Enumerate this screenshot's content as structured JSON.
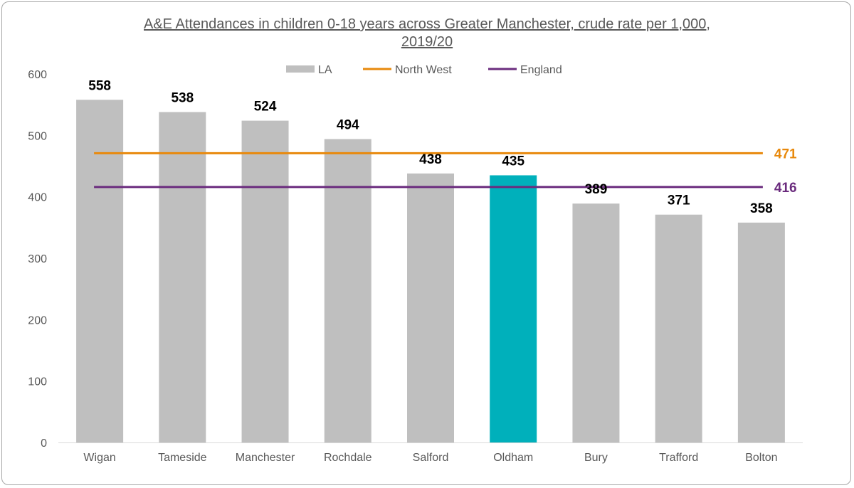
{
  "chart_data": {
    "type": "bar",
    "title_line1": "A&E Attendances in children 0-18 years across Greater Manchester, crude rate per 1,000,",
    "title_line2": "2019/20",
    "categories": [
      "Wigan",
      "Tameside",
      "Manchester",
      "Rochdale",
      "Salford",
      "Oldham",
      "Bury",
      "Trafford",
      "Bolton"
    ],
    "values": [
      558,
      538,
      524,
      494,
      438,
      435,
      389,
      371,
      358
    ],
    "highlight_category": "Oldham",
    "ylim": [
      0,
      600
    ],
    "yticks": [
      0,
      100,
      200,
      300,
      400,
      500,
      600
    ],
    "xlabel": "",
    "ylabel": "",
    "grid": false,
    "legend_position": "top",
    "series": [
      {
        "name": "LA",
        "kind": "bar",
        "color": "#bfbfbf"
      },
      {
        "name": "North West",
        "kind": "line",
        "value": 471,
        "color": "#e8890c"
      },
      {
        "name": "England",
        "kind": "line",
        "value": 416,
        "color": "#6b2c7e"
      }
    ],
    "bar_color": "#bfbfbf",
    "highlight_color": "#00b0bb"
  }
}
